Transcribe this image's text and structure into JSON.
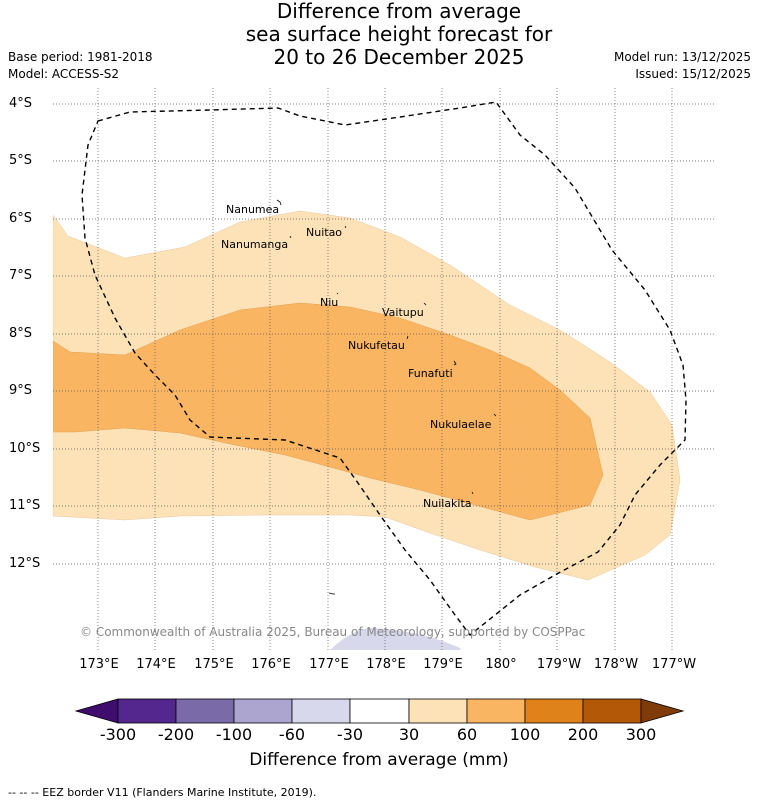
{
  "title": {
    "line1": "Difference from average",
    "line2": "sea surface height forecast for",
    "line3": "20 to 26 December 2025"
  },
  "meta": {
    "base_period": "Base period: 1981-2018",
    "model": "Model: ACCESS-S2",
    "model_run": "Model run: 13/12/2025",
    "issued": "Issued: 15/12/2025"
  },
  "axes": {
    "latitudes": [
      "4°S",
      "5°S",
      "6°S",
      "7°S",
      "8°S",
      "9°S",
      "10°S",
      "11°S",
      "12°S"
    ],
    "longitudes": [
      "173°E",
      "174°E",
      "175°E",
      "176°E",
      "177°E",
      "178°E",
      "179°E",
      "180°",
      "179°W",
      "178°W",
      "177°W"
    ]
  },
  "islands": [
    {
      "name": "Nanumea"
    },
    {
      "name": "Nanumanga"
    },
    {
      "name": "Nuitao"
    },
    {
      "name": "Niu"
    },
    {
      "name": "Vaitupu"
    },
    {
      "name": "Nukufetau"
    },
    {
      "name": "Funafuti"
    },
    {
      "name": "Nukulaelae"
    },
    {
      "name": "Nuilakita"
    }
  ],
  "colors": {
    "band_30_60": "#fde2b8",
    "band_60_100": "#fab563",
    "band_neg60_neg30": "#d8d8ec"
  },
  "copyright": "© Commonwealth of Australia 2025, Bureau of Meteorology, supported by COSPPac",
  "colorbar": {
    "ticks": [
      "-300",
      "-200",
      "-100",
      "-60",
      "-30",
      "30",
      "60",
      "100",
      "200",
      "300"
    ],
    "label": "Difference from average (mm)",
    "colors": [
      "#3f0d6e",
      "#54278f",
      "#7a6aa8",
      "#aba5cf",
      "#d8d8ec",
      "#ffffff",
      "#fde2b8",
      "#fab563",
      "#e0821a",
      "#b35806",
      "#7f3b08"
    ]
  },
  "footnote": "--  --  -- EEZ border V11 (Flanders Marine Institute, 2019)."
}
